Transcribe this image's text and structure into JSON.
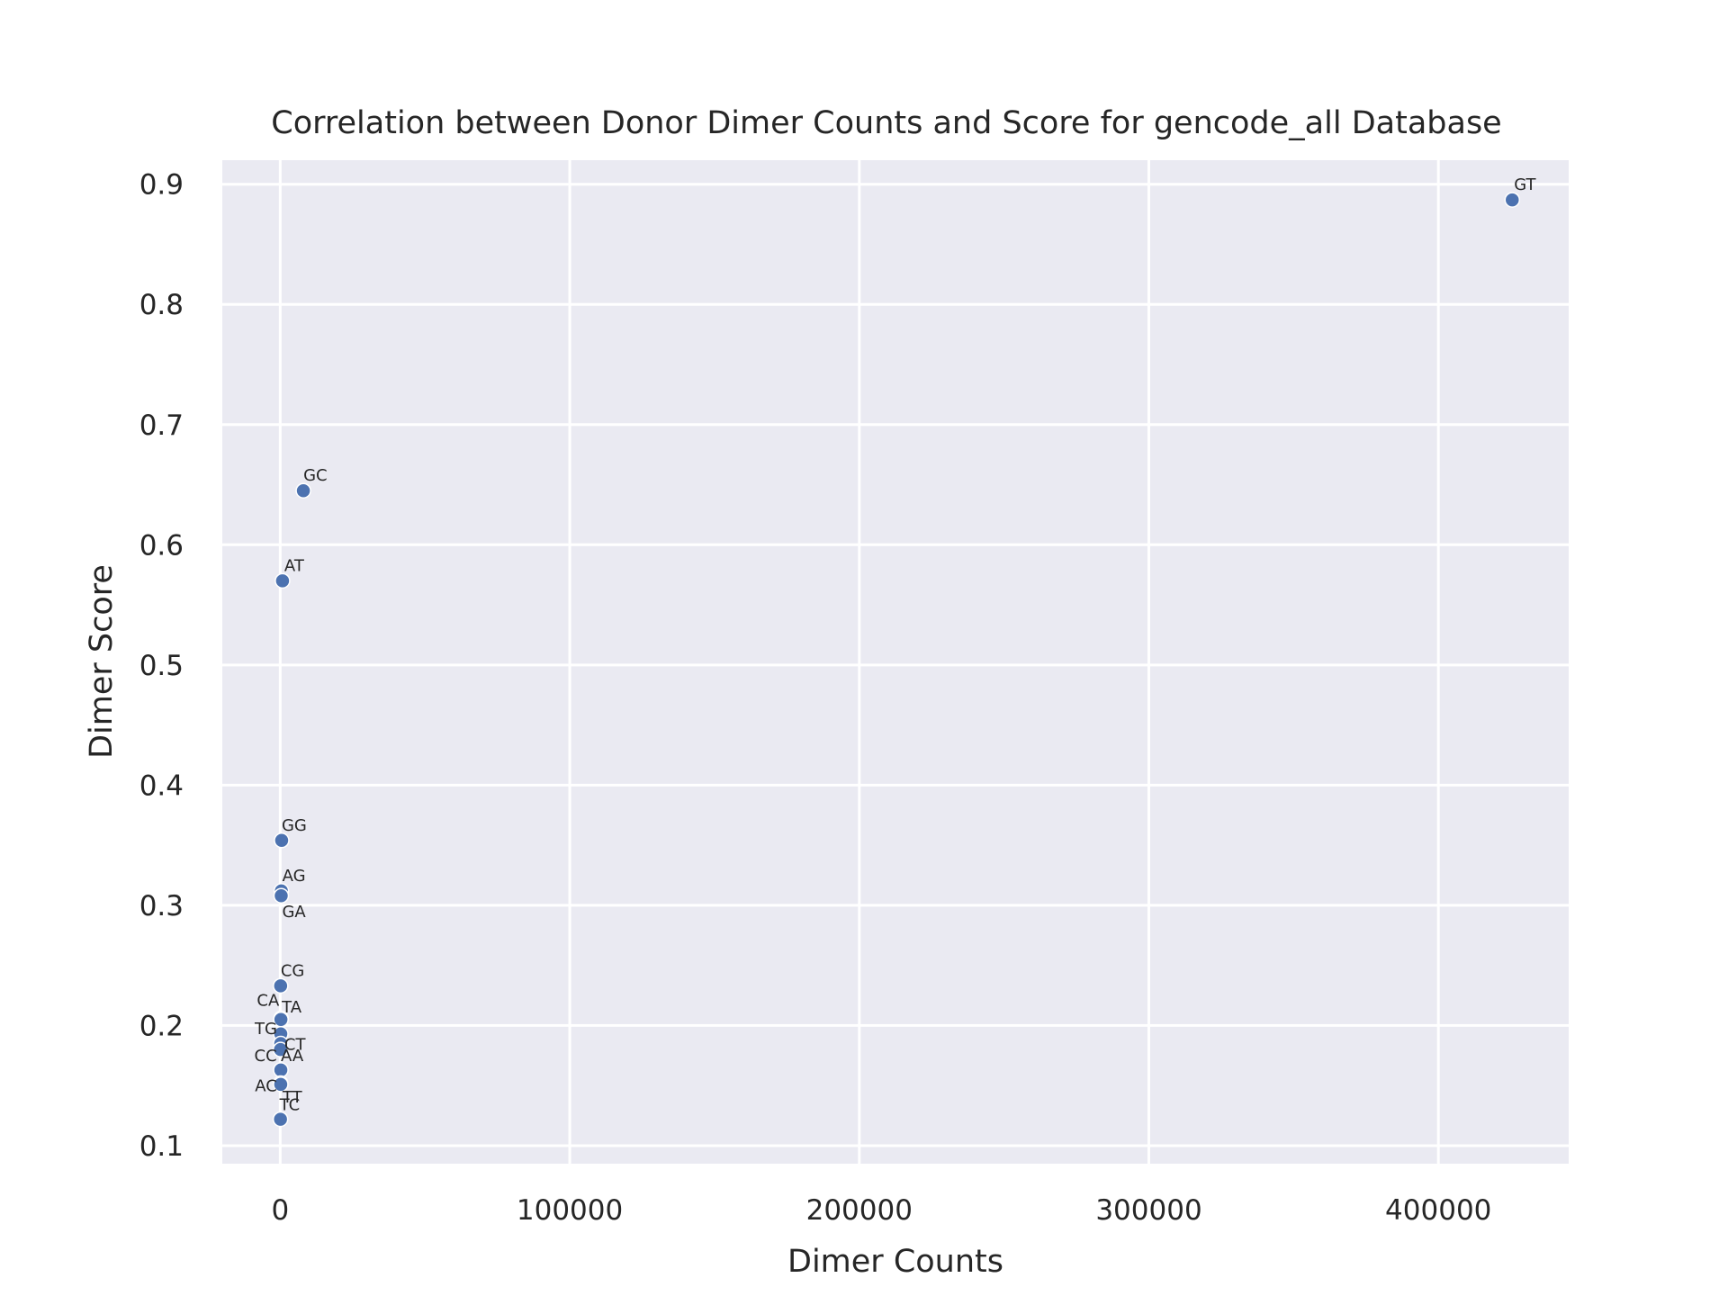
{
  "chart_data": {
    "type": "scatter",
    "title": "Correlation between Donor Dimer Counts and Score for gencode_all Database",
    "xlabel": "Dimer Counts",
    "ylabel": "Dimer Score",
    "xlim": [
      -20000,
      445000
    ],
    "ylim": [
      0.085,
      0.92
    ],
    "xticks": [
      0,
      100000,
      200000,
      300000,
      400000
    ],
    "xtick_labels": [
      "0",
      "100000",
      "200000",
      "300000",
      "400000"
    ],
    "yticks": [
      0.1,
      0.2,
      0.3,
      0.4,
      0.5,
      0.6,
      0.7,
      0.8,
      0.9
    ],
    "ytick_labels": [
      "0.1",
      "0.2",
      "0.3",
      "0.4",
      "0.5",
      "0.6",
      "0.7",
      "0.8",
      "0.9"
    ],
    "grid": true,
    "background_color": "#eaeaf2",
    "marker_color": "#4c72b0",
    "points": [
      {
        "label": "GT",
        "x": 425500,
        "y": 0.887
      },
      {
        "label": "GC",
        "x": 8000,
        "y": 0.645
      },
      {
        "label": "AT",
        "x": 800,
        "y": 0.57
      },
      {
        "label": "GG",
        "x": 500,
        "y": 0.354
      },
      {
        "label": "AG",
        "x": 400,
        "y": 0.312
      },
      {
        "label": "GA",
        "x": 350,
        "y": 0.308
      },
      {
        "label": "CG",
        "x": 150,
        "y": 0.233
      },
      {
        "label": "CA",
        "x": 300,
        "y": 0.206
      },
      {
        "label": "TA",
        "x": 250,
        "y": 0.205
      },
      {
        "label": "TG",
        "x": 200,
        "y": 0.193
      },
      {
        "label": "CT",
        "x": 180,
        "y": 0.185
      },
      {
        "label": "CC",
        "x": 100,
        "y": 0.18
      },
      {
        "label": "AA",
        "x": 220,
        "y": 0.163
      },
      {
        "label": "AC",
        "x": 150,
        "y": 0.152
      },
      {
        "label": "TT",
        "x": 180,
        "y": 0.151
      },
      {
        "label": "TC",
        "x": 100,
        "y": 0.122
      }
    ]
  }
}
